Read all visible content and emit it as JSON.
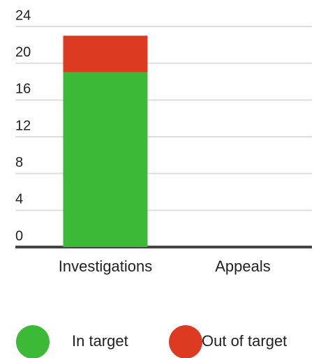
{
  "chart_data": {
    "type": "bar",
    "stacked": true,
    "categories": [
      "Investigations",
      "Appeals"
    ],
    "series": [
      {
        "name": "In target",
        "color": "#3cb936",
        "values": [
          19,
          0
        ]
      },
      {
        "name": "Out of target",
        "color": "#dc3b22",
        "values": [
          4,
          0
        ]
      }
    ],
    "ylim": [
      0,
      24
    ],
    "yticks": [
      0,
      4,
      8,
      12,
      16,
      20,
      24
    ],
    "grid": true
  }
}
